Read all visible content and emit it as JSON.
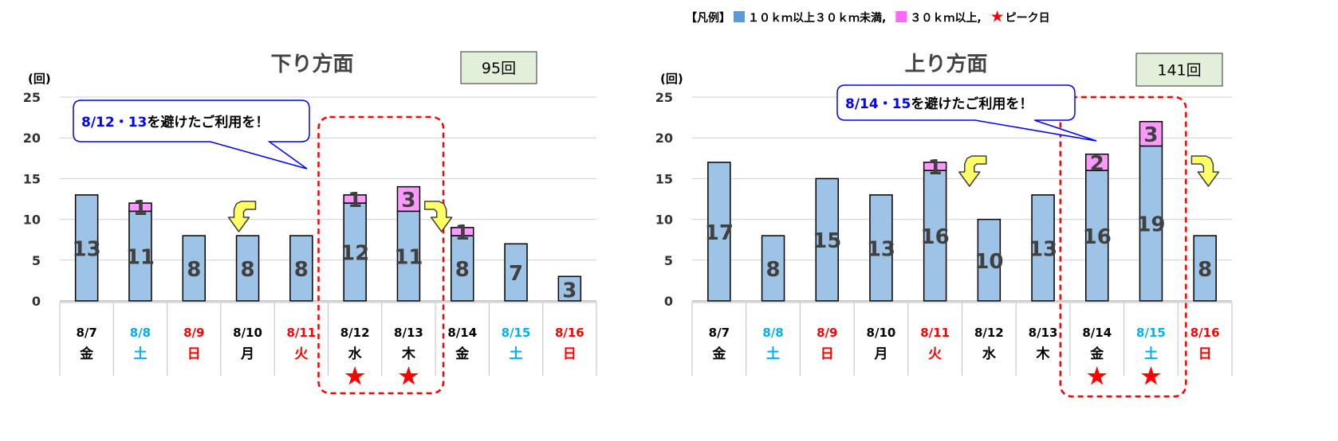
{
  "legend": {
    "prefix": "【凡例】",
    "items": [
      {
        "label": "１０ｋｍ以上３０ｋｍ未満,",
        "color": "#5b9bd5"
      },
      {
        "label": "３０ｋｍ以上,",
        "color": "#ff66ff"
      },
      {
        "label": "ピーク日",
        "color": "#ff0000",
        "symbol": "★"
      }
    ]
  },
  "colors": {
    "base": "#9dc3e6",
    "top": "#ff99ff",
    "weekday": "#000000",
    "saturday": "#00b0f0",
    "holiday": "#ff0000",
    "callout_text": "#0000ff",
    "highlight": "#ff0000"
  },
  "chart_data": [
    {
      "type": "bar",
      "stacked": true,
      "title": "下り方面",
      "total_label": "95回",
      "unit_label": "(回)",
      "ylim": [
        0,
        25
      ],
      "yticks": [
        0,
        5,
        10,
        15,
        20,
        25
      ],
      "grid": true,
      "categories": [
        "8/7",
        "8/8",
        "8/9",
        "8/10",
        "8/11",
        "8/12",
        "8/13",
        "8/14",
        "8/15",
        "8/16"
      ],
      "weekdays": [
        "金",
        "土",
        "日",
        "月",
        "火",
        "水",
        "木",
        "金",
        "土",
        "日"
      ],
      "day_types": [
        "weekday",
        "saturday",
        "holiday",
        "weekday",
        "holiday",
        "weekday",
        "weekday",
        "weekday",
        "saturday",
        "holiday"
      ],
      "series": [
        {
          "name": "１０ｋｍ以上３０ｋｍ未満",
          "values": [
            13,
            11,
            8,
            8,
            8,
            12,
            11,
            8,
            7,
            3
          ]
        },
        {
          "name": "３０ｋｍ以上",
          "values": [
            0,
            1,
            0,
            0,
            0,
            1,
            3,
            1,
            0,
            0
          ]
        }
      ],
      "peak_days": [
        "8/12",
        "8/13"
      ],
      "callout": {
        "highlight": "8/12・13",
        "text": "を避けたご利用を！"
      }
    },
    {
      "type": "bar",
      "stacked": true,
      "title": "上り方面",
      "total_label": "141回",
      "unit_label": "(回)",
      "ylim": [
        0,
        25
      ],
      "yticks": [
        0,
        5,
        10,
        15,
        20,
        25
      ],
      "grid": true,
      "categories": [
        "8/7",
        "8/8",
        "8/9",
        "8/10",
        "8/11",
        "8/12",
        "8/13",
        "8/14",
        "8/15",
        "8/16"
      ],
      "weekdays": [
        "金",
        "土",
        "日",
        "月",
        "火",
        "水",
        "木",
        "金",
        "土",
        "日"
      ],
      "day_types": [
        "weekday",
        "saturday",
        "holiday",
        "weekday",
        "holiday",
        "weekday",
        "weekday",
        "weekday",
        "saturday",
        "holiday"
      ],
      "series": [
        {
          "name": "１０ｋｍ以上３０ｋｍ未満",
          "values": [
            17,
            8,
            15,
            13,
            16,
            10,
            13,
            16,
            19,
            8
          ]
        },
        {
          "name": "３０ｋｍ以上",
          "values": [
            0,
            0,
            0,
            0,
            1,
            0,
            0,
            2,
            3,
            0
          ]
        }
      ],
      "peak_days": [
        "8/14",
        "8/15"
      ],
      "callout": {
        "highlight": "8/14・15",
        "text": "を避けたご利用を！"
      }
    }
  ]
}
